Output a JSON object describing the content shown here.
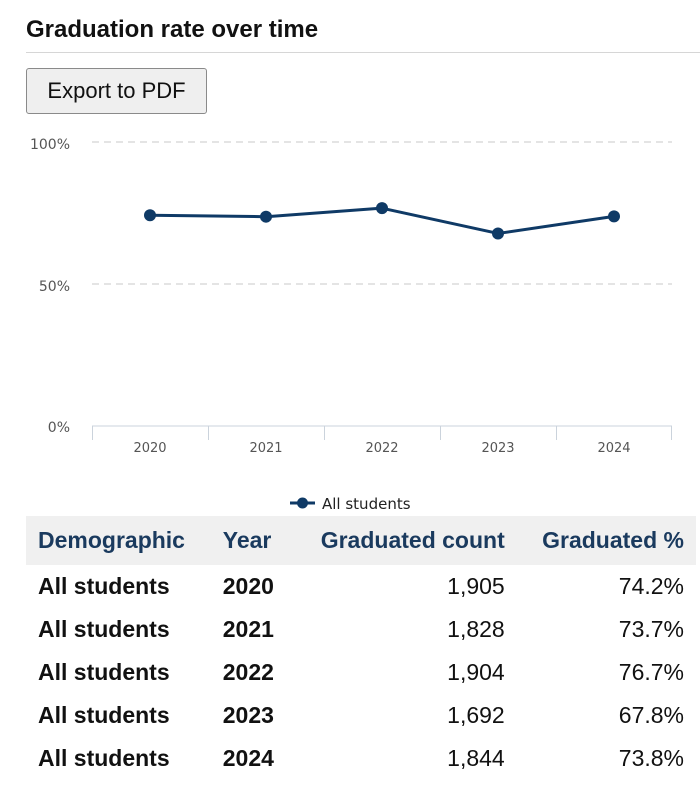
{
  "header": {
    "title": "Graduation rate over time",
    "export_label": "Export to PDF"
  },
  "chart_data": {
    "type": "line",
    "title": "Graduation rate over time",
    "xlabel": "",
    "ylabel": "",
    "categories": [
      "2020",
      "2021",
      "2022",
      "2023",
      "2024"
    ],
    "series": [
      {
        "name": "All students",
        "values": [
          74.2,
          73.7,
          76.7,
          67.8,
          73.8
        ],
        "color": "#0f3a66"
      }
    ],
    "y_ticks": [
      "0%",
      "50%",
      "100%"
    ],
    "ylim": [
      0,
      100
    ],
    "grid": "dashed horizontal at 50% and 100%",
    "legend_position": "bottom-center"
  },
  "legend": {
    "label": "All students"
  },
  "table": {
    "headers": [
      "Demographic",
      "Year",
      "Graduated count",
      "Graduated %"
    ],
    "rows": [
      [
        "All students",
        "2020",
        "1,905",
        "74.2%"
      ],
      [
        "All students",
        "2021",
        "1,828",
        "73.7%"
      ],
      [
        "All students",
        "2022",
        "1,904",
        "76.7%"
      ],
      [
        "All students",
        "2023",
        "1,692",
        "67.8%"
      ],
      [
        "All students",
        "2024",
        "1,844",
        "73.8%"
      ]
    ]
  }
}
